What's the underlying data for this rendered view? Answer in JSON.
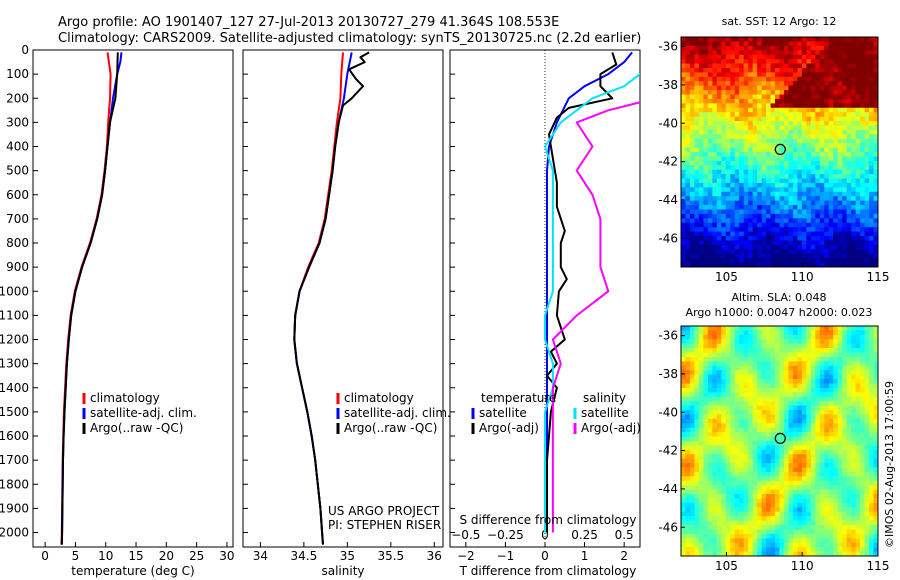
{
  "figure": {
    "title_line1": "Argo profile: AO 1901407_127 27-Jul-2013 20130727_279 41.364S 108.553E",
    "title_line2": "Climatology: CARS2009. Satellite-adjusted climatology: synTS_20130725.nc (2.2d earlier)",
    "side_stamp": "©IMOS 02-Aug-2013 17:00:59",
    "credit_line1": "US ARGO PROJECT",
    "credit_line2": "PI: STEPHEN RISER"
  },
  "colors": {
    "climatology": "#ff0000",
    "satellite": "#0000ff",
    "argo": "#000000",
    "sal_satellite": "#00e5ff",
    "sal_argo": "#ff00ff"
  },
  "depth_ticks": [
    0,
    100,
    200,
    300,
    400,
    500,
    600,
    700,
    800,
    900,
    1000,
    1100,
    1200,
    1300,
    1400,
    1500,
    1600,
    1700,
    1800,
    1900,
    2000
  ],
  "chart_data": [
    {
      "type": "line",
      "id": "temperature",
      "xlabel": "temperature (deg C)",
      "ylabel": "",
      "xlim": [
        -2,
        31
      ],
      "ylim": [
        2060,
        0
      ],
      "xticks": [
        0,
        5,
        10,
        15,
        20,
        25,
        30
      ],
      "xtick_labels": [
        "0",
        "5",
        "10",
        "15",
        "20",
        "25",
        "30"
      ],
      "legend": [
        "climatology",
        "satellite-adj. clim.",
        "Argo(..raw -QC)"
      ],
      "series": [
        {
          "name": "climatology",
          "color": "#ff0000",
          "depth": [
            10,
            100,
            200,
            300,
            400,
            500,
            600,
            700,
            800,
            900,
            1000,
            1100,
            1200,
            1300,
            1400,
            1500,
            1600,
            1700,
            1800,
            1900,
            2000,
            2050
          ],
          "values": [
            10.3,
            10.8,
            10.7,
            10.4,
            10.2,
            9.8,
            9.3,
            8.5,
            7.4,
            6.0,
            4.9,
            4.2,
            3.8,
            3.5,
            3.3,
            3.1,
            3.0,
            2.9,
            2.85,
            2.8,
            2.75,
            2.7
          ]
        },
        {
          "name": "satellite-adj. clim.",
          "color": "#0000ff",
          "depth": [
            10,
            50,
            100,
            200,
            300,
            400,
            500,
            600,
            700,
            800,
            900,
            1000,
            1100,
            1200,
            1300,
            1400,
            1500,
            1600,
            1700,
            1800,
            1900,
            2000,
            2050
          ],
          "values": [
            12.6,
            12.4,
            11.9,
            11.2,
            10.7,
            10.3,
            9.9,
            9.4,
            8.6,
            7.5,
            6.1,
            5.0,
            4.3,
            3.9,
            3.6,
            3.4,
            3.2,
            3.05,
            2.95,
            2.9,
            2.85,
            2.8,
            2.75
          ]
        },
        {
          "name": "Argo(..raw -QC)",
          "color": "#000000",
          "depth": [
            10,
            100,
            200,
            300,
            400,
            500,
            600,
            700,
            800,
            900,
            1000,
            1100,
            1200,
            1300,
            1400,
            1500,
            1600,
            1700,
            1800,
            1900,
            2000,
            2050
          ],
          "values": [
            12.0,
            11.9,
            11.6,
            10.7,
            10.3,
            9.9,
            9.4,
            8.6,
            7.5,
            6.1,
            5.0,
            4.3,
            3.9,
            3.6,
            3.4,
            3.2,
            3.05,
            2.95,
            2.9,
            2.85,
            2.8,
            2.75
          ]
        }
      ]
    },
    {
      "type": "line",
      "id": "salinity",
      "xlabel": "salinity",
      "ylabel": "",
      "xlim": [
        33.8,
        36.1
      ],
      "ylim": [
        2060,
        0
      ],
      "xticks": [
        34,
        34.5,
        35,
        35.5,
        36
      ],
      "xtick_labels": [
        "34",
        "34.5",
        "35",
        "35.5",
        "36"
      ],
      "legend": [
        "climatology",
        "satellite-adj. clim.",
        "Argo(..raw -QC)"
      ],
      "series": [
        {
          "name": "climatology",
          "color": "#ff0000",
          "depth": [
            10,
            100,
            200,
            300,
            400,
            500,
            600,
            700,
            800,
            900,
            1000,
            1100,
            1200,
            1300,
            1400,
            1500,
            1600,
            1700,
            1800,
            1900,
            2000,
            2050
          ],
          "values": [
            34.95,
            34.93,
            34.92,
            34.88,
            34.85,
            34.82,
            34.78,
            34.74,
            34.67,
            34.55,
            34.45,
            34.4,
            34.39,
            34.42,
            34.48,
            34.54,
            34.59,
            34.63,
            34.66,
            34.69,
            34.71,
            34.72
          ]
        },
        {
          "name": "satellite-adj. clim.",
          "color": "#0000ff",
          "depth": [
            10,
            100,
            200,
            300,
            400,
            500,
            600,
            700,
            800,
            900,
            1000,
            1100,
            1200,
            1300,
            1400,
            1500,
            1600,
            1700,
            1800,
            1900,
            2000,
            2050
          ],
          "values": [
            35.05,
            35.0,
            34.96,
            34.9,
            34.86,
            34.83,
            34.79,
            34.75,
            34.68,
            34.56,
            34.45,
            34.4,
            34.39,
            34.42,
            34.48,
            34.54,
            34.59,
            34.63,
            34.66,
            34.69,
            34.71,
            34.72
          ]
        },
        {
          "name": "Argo(..raw -QC)",
          "color": "#000000",
          "depth": [
            10,
            30,
            50,
            80,
            120,
            150,
            200,
            230,
            300,
            400,
            500,
            600,
            700,
            800,
            900,
            1000,
            1100,
            1200,
            1300,
            1400,
            1500,
            1600,
            1700,
            1800,
            1900,
            2000,
            2050
          ],
          "values": [
            35.25,
            35.15,
            35.2,
            35.02,
            35.1,
            35.18,
            35.05,
            34.95,
            34.9,
            34.86,
            34.83,
            34.79,
            34.75,
            34.68,
            34.56,
            34.45,
            34.4,
            34.39,
            34.42,
            34.48,
            34.54,
            34.59,
            34.63,
            34.66,
            34.69,
            34.71,
            34.72
          ]
        }
      ]
    },
    {
      "type": "line",
      "id": "difference",
      "xlabel": "T difference from climatology",
      "xlabel_top": "S difference from climatology",
      "xlim": [
        -2.4,
        2.4
      ],
      "ylim": [
        2060,
        0
      ],
      "xticks": [
        -2,
        -1,
        0,
        1,
        2
      ],
      "xtick_labels": [
        "−2",
        "−1",
        "0",
        "1",
        "2"
      ],
      "xticks_s": [
        -0.5,
        -0.25,
        0,
        0.25,
        0.5
      ],
      "xtick_labels_s": [
        "−0.5",
        "−0.25",
        "0",
        "0.25",
        "0.5"
      ],
      "legend": [
        "satellite",
        "Argo(-adj)",
        "satellite",
        "Argo(-adj)"
      ],
      "legend_heads": [
        "temperature",
        "salinity"
      ],
      "series": [
        {
          "name": "satellite",
          "color": "#0000ff",
          "depth": [
            10,
            50,
            100,
            150,
            200,
            300,
            400,
            500,
            600,
            700,
            800,
            900,
            1000,
            1100,
            1200,
            1300,
            1400,
            1500,
            1600,
            1700,
            1800,
            1900,
            2000
          ],
          "values": [
            2.2,
            2.0,
            1.6,
            1.0,
            0.6,
            0.3,
            0.1,
            0.05,
            0.05,
            0.05,
            0.05,
            0.05,
            0.05,
            0.05,
            0.05,
            0.05,
            0.05,
            0.05,
            0.05,
            0.05,
            0.05,
            0.05,
            0.05
          ]
        },
        {
          "name": "Argo(-adj)",
          "color": "#000000",
          "depth": [
            10,
            60,
            100,
            150,
            200,
            240,
            280,
            350,
            450,
            550,
            650,
            750,
            800,
            900,
            950,
            1000,
            1100,
            1200,
            1250,
            1300,
            1350,
            1400,
            1500,
            1600,
            1700,
            1800,
            1900,
            2000
          ],
          "values": [
            1.7,
            1.8,
            1.4,
            1.4,
            1.7,
            0.6,
            0.3,
            0.1,
            0.2,
            0.3,
            0.3,
            0.5,
            0.4,
            0.4,
            0.55,
            0.35,
            0.3,
            0.5,
            0.15,
            0.3,
            0.05,
            0.3,
            0.15,
            0.1,
            0.05,
            0.05,
            0.05,
            0.05
          ]
        },
        {
          "name": "satellite",
          "color": "#00e5ff",
          "depth": [
            10,
            50,
            100,
            150,
            200,
            250,
            300,
            400,
            500,
            600,
            700,
            800,
            900,
            1000,
            1100,
            1200,
            1300,
            1400,
            1500,
            1600,
            1700,
            1800,
            1900,
            2000
          ],
          "values": [
            0.9,
            0.8,
            0.6,
            0.5,
            0.3,
            0.2,
            0.1,
            0.0,
            0.05,
            0.05,
            0.05,
            0.05,
            0.05,
            0.05,
            0.0,
            0.0,
            0.05,
            0.05,
            0.0,
            0.0,
            0.0,
            0.0,
            0.0,
            0.0
          ]
        },
        {
          "name": "Argo(-adj)",
          "color": "#ff00ff",
          "depth": [
            10,
            50,
            100,
            150,
            200,
            250,
            300,
            400,
            500,
            600,
            700,
            800,
            900,
            1000,
            1100,
            1200,
            1300,
            1400,
            1500,
            1600,
            1700,
            1800,
            1900,
            2000
          ],
          "values": [
            1.9,
            1.3,
            1.1,
            0.9,
            0.7,
            0.4,
            0.2,
            0.3,
            0.2,
            0.3,
            0.35,
            0.35,
            0.35,
            0.4,
            0.2,
            0.05,
            0.1,
            0.05,
            0.05,
            0.05,
            0.05,
            0.05,
            0.05,
            0.05
          ]
        }
      ]
    },
    {
      "type": "heatmap",
      "id": "sst_map",
      "title": "sat. SST: 12 Argo: 12",
      "xlim": [
        102,
        115
      ],
      "ylim": [
        -47.5,
        -35.5
      ],
      "xticks": [
        105,
        110,
        115
      ],
      "yticks": [
        -36,
        -38,
        -40,
        -42,
        -44,
        -46
      ],
      "marker": {
        "lon": 108.553,
        "lat": -41.364
      }
    },
    {
      "type": "heatmap",
      "id": "sla_map",
      "title_line1": "Altim. SLA: 0.048",
      "title_line2": "Argo h1000: 0.0047 h2000: 0.023",
      "xlim": [
        102,
        115
      ],
      "ylim": [
        -47.5,
        -35.5
      ],
      "xticks": [
        105,
        110,
        115
      ],
      "yticks": [
        -36,
        -38,
        -40,
        -42,
        -44,
        -46
      ],
      "marker": {
        "lon": 108.553,
        "lat": -41.364
      }
    }
  ]
}
